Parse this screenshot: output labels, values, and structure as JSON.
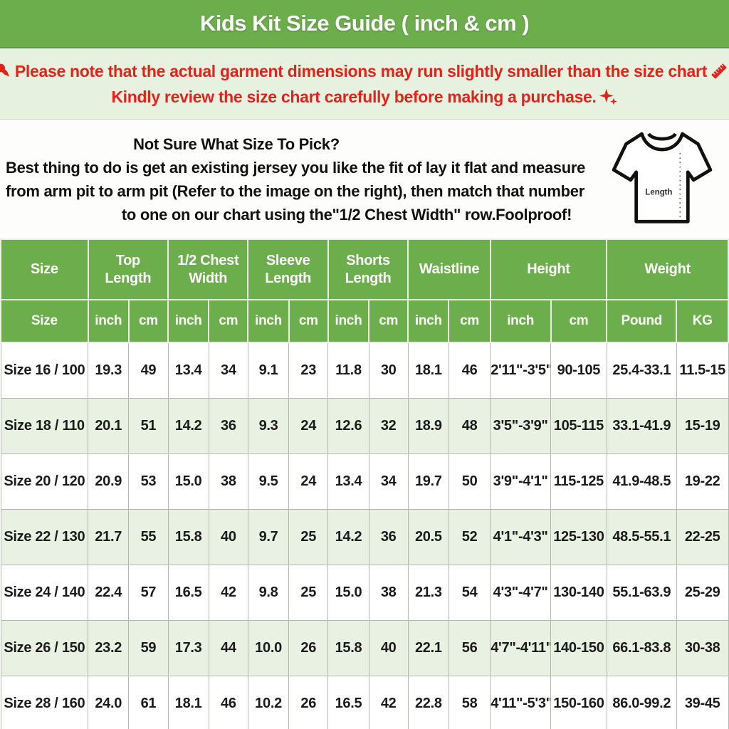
{
  "title": "Kids Kit Size Guide ( inch & cm )",
  "colors": {
    "header_green": "#6cae4c",
    "notice_bg": "#e7f1e0",
    "notice_red": "#e2231a",
    "row_alt_bg": "#e9f1e2",
    "text_black": "#161616"
  },
  "notice": {
    "line1_text": "Please note that the actual garment dimensions may run slightly smaller than the size chart",
    "line1_end": ".",
    "line2_text": "Kindly review the size chart carefully before making a purchase.",
    "icons": [
      "pushpin-icon",
      "ruler-icon",
      "sparkles-icon"
    ]
  },
  "help": {
    "heading": "Not Sure What Size To Pick?",
    "line1": "Best thing to do is get an existing jersey you like the fit of lay it flat and measure",
    "line2": "from arm pit to arm pit (Refer to the image on the right), then match that number",
    "line3": "to one on our chart using the\"1/2 Chest Width\" row.Foolproof!",
    "shirt_label": "Length"
  },
  "table": {
    "groups": [
      {
        "label": "Size",
        "span": 1
      },
      {
        "label": "Top Length",
        "span": 2
      },
      {
        "label": "1/2 Chest Width",
        "span": 2
      },
      {
        "label": "Sleeve Length",
        "span": 2
      },
      {
        "label": "Shorts Length",
        "span": 2
      },
      {
        "label": "Waistline",
        "span": 2
      },
      {
        "label": "Height",
        "span": 2
      },
      {
        "label": "Weight",
        "span": 2
      }
    ],
    "subheaders": [
      "Size",
      "inch",
      "cm",
      "inch",
      "cm",
      "inch",
      "cm",
      "inch",
      "cm",
      "inch",
      "cm",
      "inch",
      "cm",
      "Pound",
      "KG"
    ],
    "rows": [
      [
        "Size 16 / 100",
        "19.3",
        "49",
        "13.4",
        "34",
        "9.1",
        "23",
        "11.8",
        "30",
        "18.1",
        "46",
        "2'11\"-3'5\"",
        "90-105",
        "25.4-33.1",
        "11.5-15"
      ],
      [
        "Size 18 / 110",
        "20.1",
        "51",
        "14.2",
        "36",
        "9.3",
        "24",
        "12.6",
        "32",
        "18.9",
        "48",
        "3'5\"-3'9\"",
        "105-115",
        "33.1-41.9",
        "15-19"
      ],
      [
        "Size 20 / 120",
        "20.9",
        "53",
        "15.0",
        "38",
        "9.5",
        "24",
        "13.4",
        "34",
        "19.7",
        "50",
        "3'9\"-4'1\"",
        "115-125",
        "41.9-48.5",
        "19-22"
      ],
      [
        "Size 22 / 130",
        "21.7",
        "55",
        "15.8",
        "40",
        "9.7",
        "25",
        "14.2",
        "36",
        "20.5",
        "52",
        "4'1\"-4'3\"",
        "125-130",
        "48.5-55.1",
        "22-25"
      ],
      [
        "Size 24 / 140",
        "22.4",
        "57",
        "16.5",
        "42",
        "9.8",
        "25",
        "15.0",
        "38",
        "21.3",
        "54",
        "4'3\"-4'7\"",
        "130-140",
        "55.1-63.9",
        "25-29"
      ],
      [
        "Size 26 / 150",
        "23.2",
        "59",
        "17.3",
        "44",
        "10.0",
        "26",
        "15.8",
        "40",
        "22.1",
        "56",
        "4'7\"-4'11\"",
        "140-150",
        "66.1-83.8",
        "30-38"
      ],
      [
        "Size 28 / 160",
        "24.0",
        "61",
        "18.1",
        "46",
        "10.2",
        "26",
        "16.5",
        "42",
        "22.8",
        "58",
        "4'11\"-5'3\"",
        "150-160",
        "86.0-99.2",
        "39-45"
      ]
    ]
  }
}
